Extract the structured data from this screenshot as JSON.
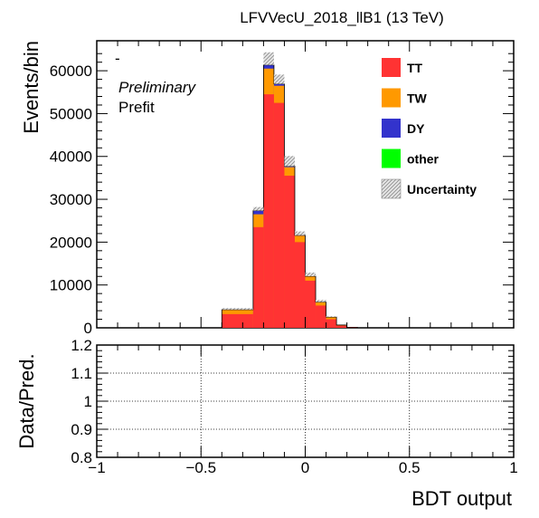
{
  "chart_data": {
    "type": "bar",
    "title": "LFVVecU_2018_llB1 (13 TeV)",
    "mark": "-",
    "annotations": {
      "preliminary": "Preliminary",
      "prefit": "Prefit"
    },
    "top_panel": {
      "ylabel": "Events/bin",
      "ylim": [
        0,
        67000
      ],
      "yticks": [
        0,
        10000,
        20000,
        30000,
        40000,
        50000,
        60000
      ],
      "ytick_labels": [
        "0",
        "10000",
        "20000",
        "30000",
        "40000",
        "50000",
        "60000"
      ]
    },
    "ratio_panel": {
      "ylabel": "Data/Pred.",
      "ylim": [
        0.8,
        1.2
      ],
      "yticks": [
        0.8,
        0.9,
        1.0,
        1.1,
        1.2
      ],
      "ytick_labels": [
        "0.8",
        "0.9",
        "1",
        "1.1",
        "1.2"
      ],
      "grid": true
    },
    "xlabel": "BDT output",
    "xlim": [
      -1,
      1
    ],
    "xticks": [
      -1,
      -0.5,
      0,
      0.5,
      1
    ],
    "xtick_labels": [
      "−1",
      "−0.5",
      "0",
      "0.5",
      "1"
    ],
    "bin_edges": [
      -0.4,
      -0.25,
      -0.2,
      -0.15,
      -0.1,
      -0.05,
      0.0,
      0.05,
      0.1,
      0.15,
      0.2,
      0.25
    ],
    "series": [
      {
        "name": "TT",
        "color": "#ff3333",
        "values": [
          3200,
          23500,
          54500,
          52500,
          35500,
          20000,
          11000,
          5200,
          2000,
          500,
          100
        ]
      },
      {
        "name": "TW",
        "color": "#ff9900",
        "values": [
          1000,
          3000,
          6000,
          4000,
          2000,
          1500,
          1000,
          800,
          500,
          150,
          30
        ]
      },
      {
        "name": "DY",
        "color": "#3333cc",
        "values": [
          50,
          800,
          800,
          400,
          200,
          100,
          50,
          30,
          20,
          0,
          0
        ]
      },
      {
        "name": "other",
        "color": "#00ff00",
        "values": [
          10,
          50,
          50,
          30,
          20,
          10,
          5,
          5,
          2,
          0,
          0
        ]
      }
    ],
    "uncertainty": {
      "name": "Uncertainty",
      "up": [
        4600,
        28200,
        64300,
        59100,
        40100,
        22500,
        12900,
        6500,
        2700,
        700,
        150
      ]
    },
    "legend_position": "top-right"
  }
}
